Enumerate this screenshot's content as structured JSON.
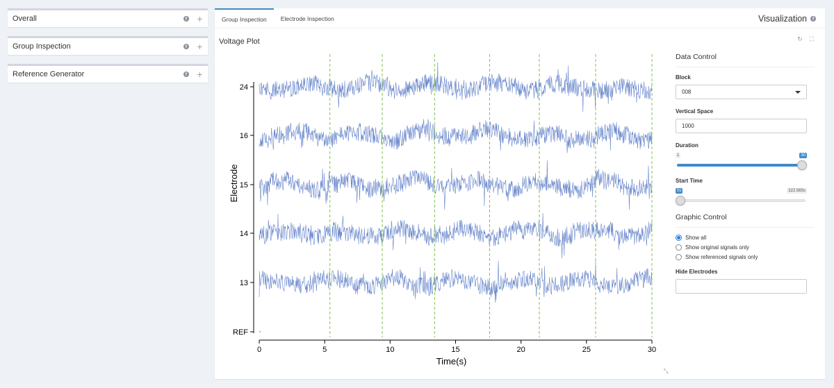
{
  "sidebar": {
    "cards": [
      {
        "title": "Overall"
      },
      {
        "title": "Group Inspection"
      },
      {
        "title": "Reference Generator"
      }
    ],
    "help_glyph": "?",
    "plus_glyph": "+"
  },
  "tabs": [
    {
      "label": "Group Inspection",
      "active": true
    },
    {
      "label": "Electrode Inspection",
      "active": false
    }
  ],
  "visualization": {
    "title": "Visualization"
  },
  "plot": {
    "title": "Voltage Plot",
    "refresh_glyph": "↻",
    "expand_glyph": "⛶",
    "resize_glyph": "⤡"
  },
  "chart_data": {
    "type": "line",
    "xlabel": "Time(s)",
    "ylabel": "Electrode",
    "xlim": [
      0,
      30
    ],
    "x_ticks": [
      0,
      5,
      10,
      15,
      20,
      25,
      30
    ],
    "y_categories": [
      "REF",
      "13",
      "14",
      "15",
      "16",
      "24"
    ],
    "series": [
      {
        "name": "24"
      },
      {
        "name": "16"
      },
      {
        "name": "15"
      },
      {
        "name": "14"
      },
      {
        "name": "13"
      }
    ],
    "markers_x": [
      5.4,
      9.4,
      13.4,
      17.6,
      21.4,
      25.7,
      30.0
    ],
    "colors": {
      "signal": "#4a6fc2",
      "marker": "#7ec24a"
    }
  },
  "data_control": {
    "title": "Data Control",
    "block": {
      "label": "Block",
      "value": "008"
    },
    "vertical_space": {
      "label": "Vertical Space",
      "value": "1000"
    },
    "duration": {
      "label": "Duration",
      "min": "1",
      "max": "30",
      "value": 30
    },
    "start_time": {
      "label": "Start Time",
      "min": "0s",
      "max": "322.565s",
      "value": 0
    }
  },
  "graphic_control": {
    "title": "Graphic Control",
    "options": [
      {
        "label": "Show all",
        "checked": true
      },
      {
        "label": "Show original signals only",
        "checked": false
      },
      {
        "label": "Show referenced signals only",
        "checked": false
      }
    ],
    "hide_electrodes": {
      "label": "Hide Electrodes",
      "value": ""
    }
  }
}
